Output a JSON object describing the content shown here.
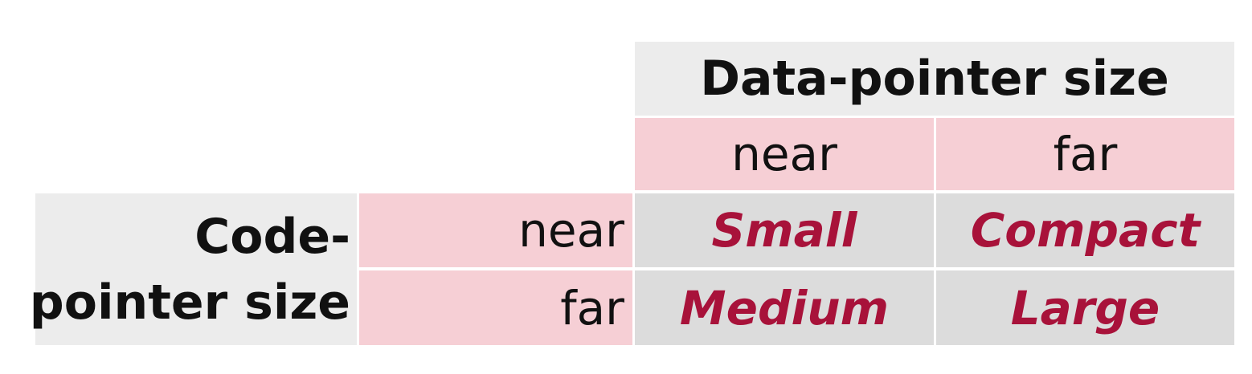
{
  "table": {
    "column_header": "Data-pointer size",
    "row_header_line1": "Code-",
    "row_header_line2": "pointer size",
    "columns": [
      "near",
      "far"
    ],
    "rows": [
      {
        "label": "near",
        "values": [
          "Small",
          "Compact"
        ]
      },
      {
        "label": "far",
        "values": [
          "Medium",
          "Large"
        ]
      }
    ]
  },
  "colors": {
    "header_bg": "#ececec",
    "label_bg": "#f6cfd5",
    "value_bg": "#dcdcdc",
    "value_text": "#a8123a"
  }
}
